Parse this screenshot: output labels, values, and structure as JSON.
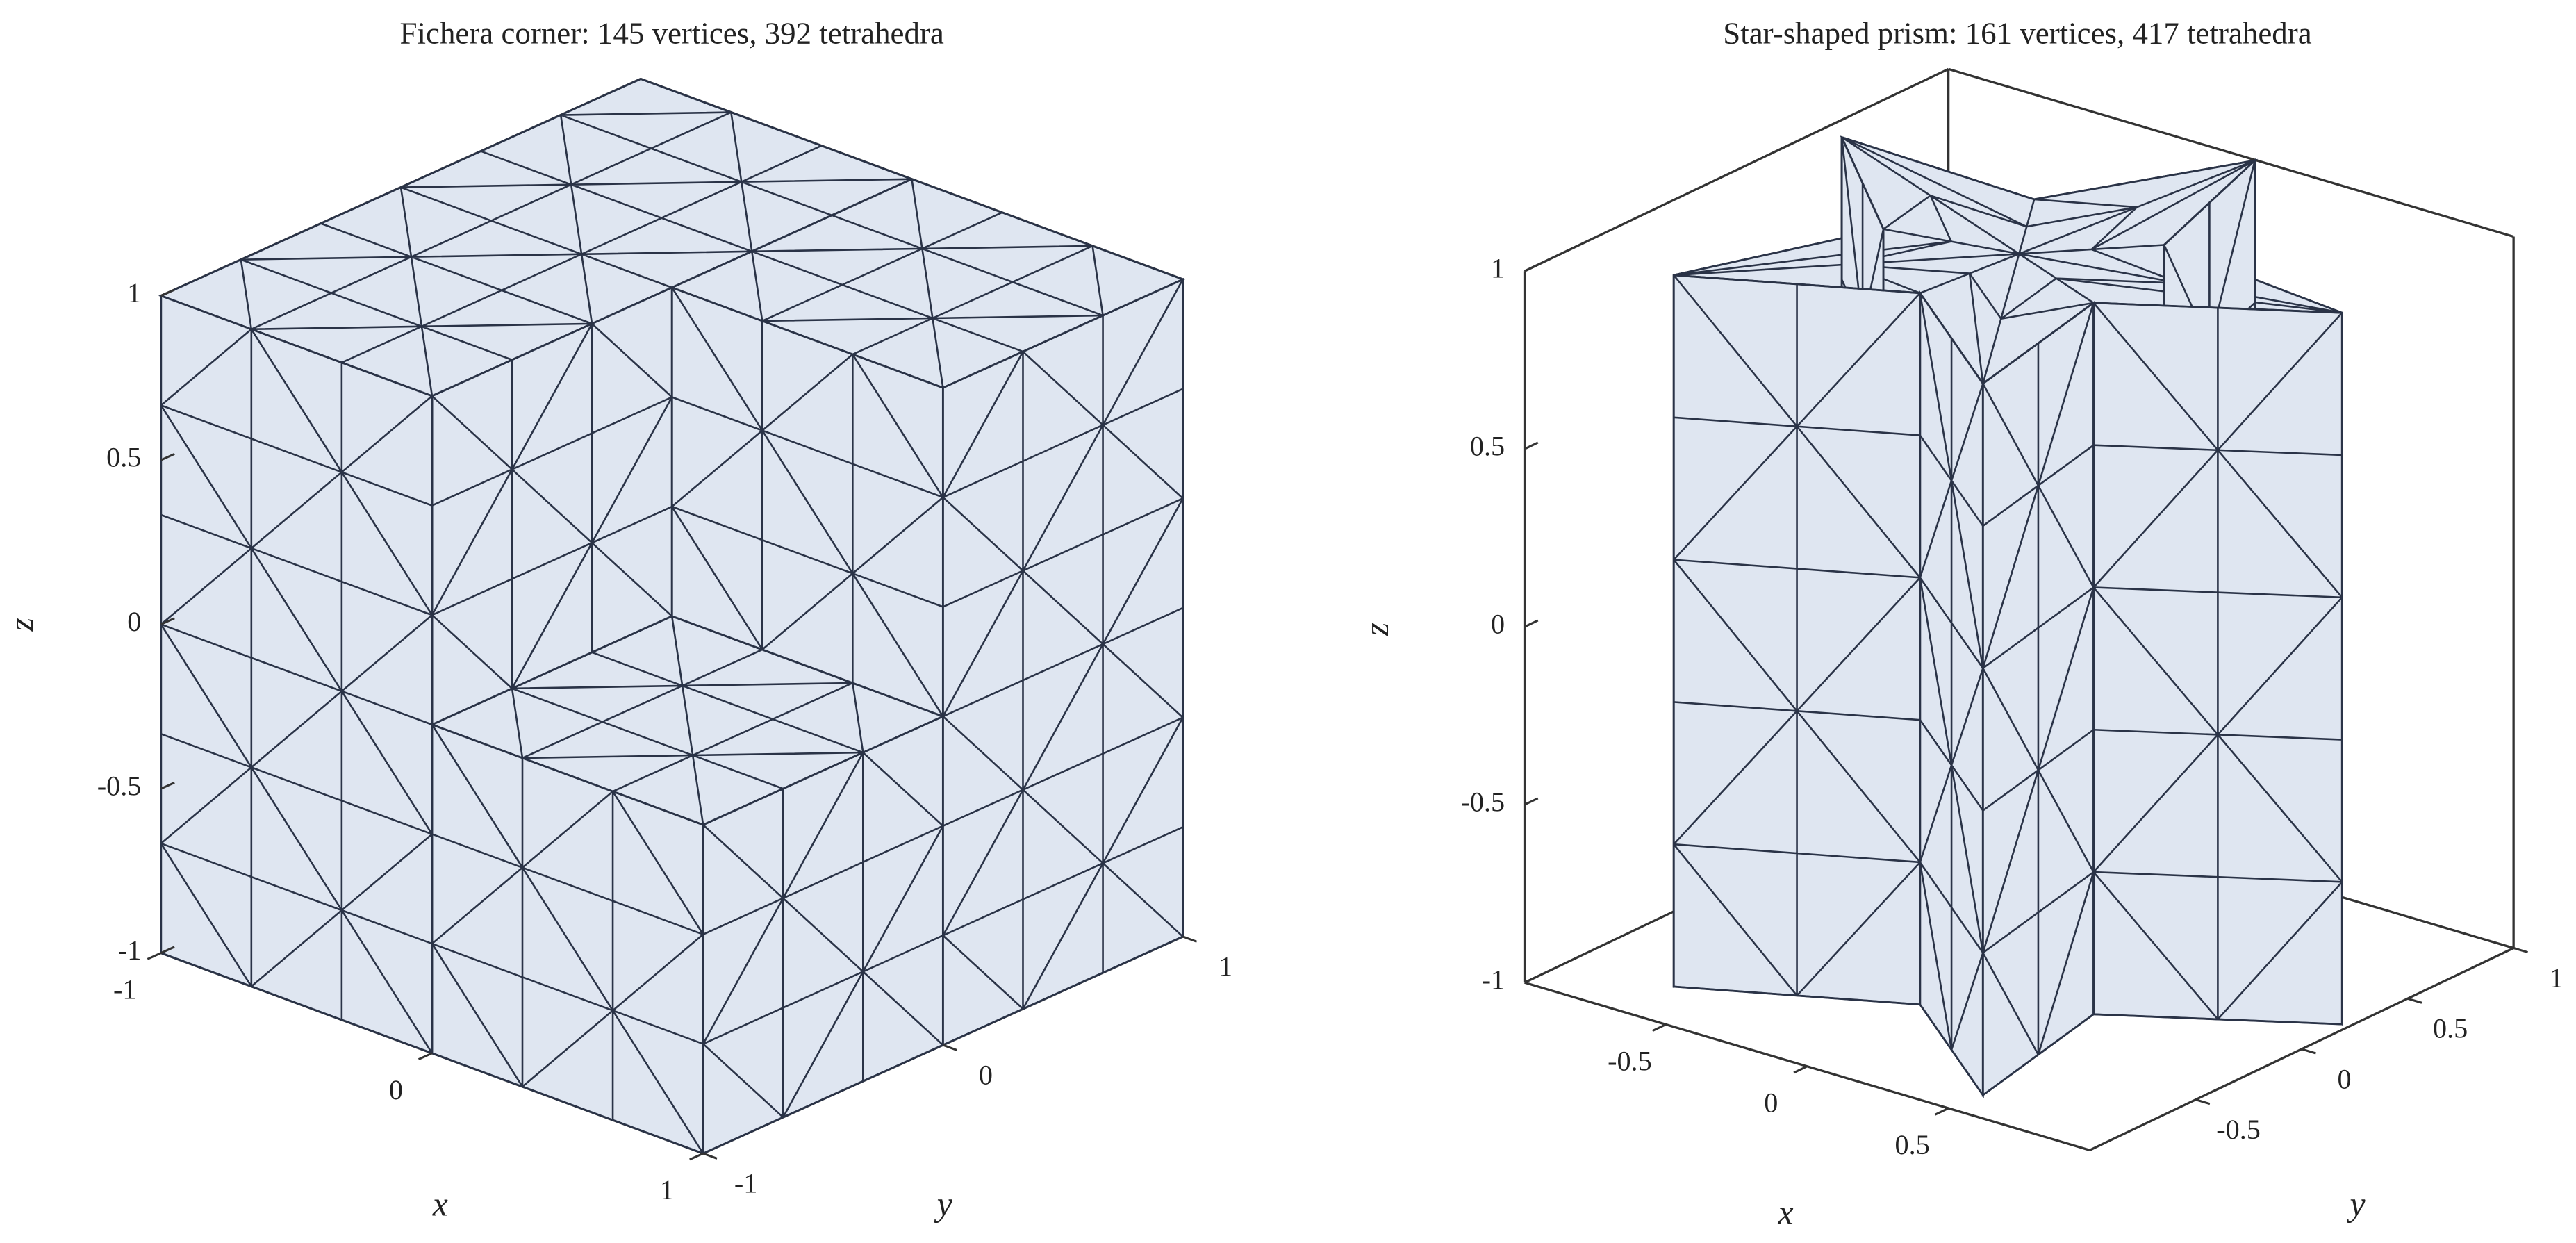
{
  "chart_data": [
    {
      "type": "fichera",
      "title": "Fichera corner: 145 vertices, 392 tetrahedra",
      "xlabel": "x",
      "ylabel": "y",
      "zlabel": "z",
      "xlim": [
        -1,
        1
      ],
      "ylim": [
        -1,
        1
      ],
      "zlim": [
        -1,
        1
      ],
      "xticks": [
        -1,
        0,
        1
      ],
      "yticks": [
        -1,
        0,
        1
      ],
      "zticks": [
        -1,
        -0.5,
        0,
        0.5,
        1
      ],
      "color": "#dfe6f1",
      "edge_color": "#2a3347"
    },
    {
      "type": "prism",
      "title": "Star-shaped prism: 161 vertices, 417 tetrahedra",
      "xlabel": "x",
      "ylabel": "y",
      "zlabel": "z",
      "xlim": [
        -1,
        1
      ],
      "ylim": [
        -1,
        1
      ],
      "zlim": [
        -1,
        1
      ],
      "xticks": [
        -0.5,
        0,
        0.5
      ],
      "yticks": [
        -0.5,
        0,
        0.5,
        1
      ],
      "zticks": [
        -1,
        -0.5,
        0,
        0.5,
        1
      ],
      "color": "#dfe6f1",
      "edge_color": "#2a3347"
    }
  ]
}
